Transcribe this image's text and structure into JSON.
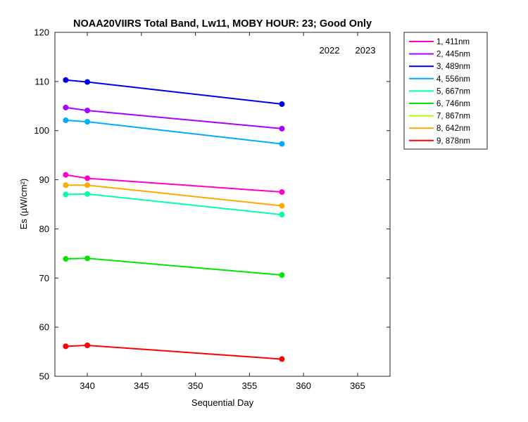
{
  "chart_data": {
    "type": "line",
    "title": "NOAA20VIIRS Total Band,  Lw11, MOBY HOUR: 23;  Good Only",
    "xlabel": "Sequential Day",
    "ylabel": "Es (µW/cm²)",
    "xlim": [
      337,
      368
    ],
    "ylim": [
      50,
      120
    ],
    "xticks": [
      "340",
      "345",
      "350",
      "355",
      "360",
      "365"
    ],
    "yticks": [
      "50",
      "60",
      "70",
      "80",
      "90",
      "100",
      "110",
      "120"
    ],
    "year_labels": [
      "2022",
      "2023"
    ],
    "legend_position": "outside-top-right",
    "series": [
      {
        "name": "1, 411nm",
        "color": "#ff00cc",
        "x": [
          338,
          340,
          358
        ],
        "y": [
          91.0,
          90.3,
          87.5
        ]
      },
      {
        "name": "2, 445nm",
        "color": "#aa00ff",
        "x": [
          338,
          340,
          358
        ],
        "y": [
          104.7,
          104.1,
          100.4
        ]
      },
      {
        "name": "3, 489nm",
        "color": "#0000e6",
        "x": [
          338,
          340,
          358
        ],
        "y": [
          110.3,
          109.9,
          105.4
        ]
      },
      {
        "name": "4, 556nm",
        "color": "#00aaff",
        "x": [
          338,
          340,
          358
        ],
        "y": [
          102.1,
          101.8,
          97.3
        ]
      },
      {
        "name": "5, 667nm",
        "color": "#00ffaa",
        "x": [
          338,
          340,
          358
        ],
        "y": [
          87.0,
          87.1,
          82.9
        ]
      },
      {
        "name": "6, 746nm",
        "color": "#00e600",
        "x": [
          338,
          340,
          358
        ],
        "y": [
          73.9,
          74.0,
          70.6
        ]
      },
      {
        "name": "7, 867nm",
        "color": "#aaff00",
        "x": [],
        "y": []
      },
      {
        "name": "8, 642nm",
        "color": "#ffaa00",
        "x": [
          338,
          340,
          358
        ],
        "y": [
          88.9,
          88.9,
          84.7
        ]
      },
      {
        "name": "9, 878nm",
        "color": "#ff0000",
        "x": [
          338,
          340,
          358
        ],
        "y": [
          56.1,
          56.3,
          53.5
        ]
      }
    ]
  }
}
